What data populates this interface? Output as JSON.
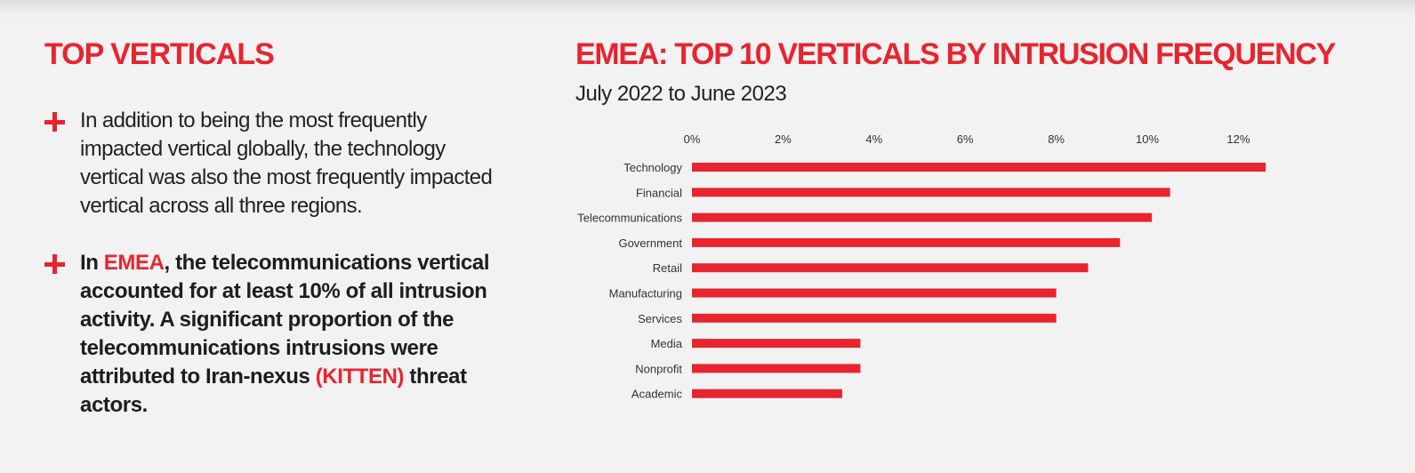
{
  "left": {
    "title": "TOP VERTICALS",
    "bullet1": "In addition to being the most frequently impacted vertical globally, the technology vertical was also the most frequently impacted vertical across all three regions.",
    "bullet2": {
      "part1": "In ",
      "emea": "EMEA",
      "part2": ", the telecommunications vertical accounted for at least 10% of all intrusion activity. A significant proportion of the telecommunications intrusions were attributed to Iran-nexus ",
      "kitten": "(KITTEN)",
      "part3": " threat actors."
    }
  },
  "colors": {
    "accent": "#e8242f",
    "text": "#222222",
    "background": "#f2f2f2"
  },
  "chart_data": {
    "type": "bar",
    "orientation": "horizontal",
    "title": "EMEA:  TOP 10 VERTICALS BY INTRUSION FREQUENCY",
    "subtitle": "July 2022 to June 2023",
    "categories": [
      "Technology",
      "Financial",
      "Telecommunications",
      "Government",
      "Retail",
      "Manufacturing",
      "Services",
      "Media",
      "Nonprofit",
      "Academic"
    ],
    "values": [
      12.6,
      10.5,
      10.1,
      9.4,
      8.7,
      8.0,
      8.0,
      3.7,
      3.7,
      3.3
    ],
    "unit": "%",
    "xlim": [
      0,
      12
    ],
    "xticks": [
      "0%",
      "2%",
      "4%",
      "6%",
      "8%",
      "10%",
      "12%"
    ],
    "tick_position": "top",
    "grid": false,
    "bar_color": "#e8242f"
  }
}
